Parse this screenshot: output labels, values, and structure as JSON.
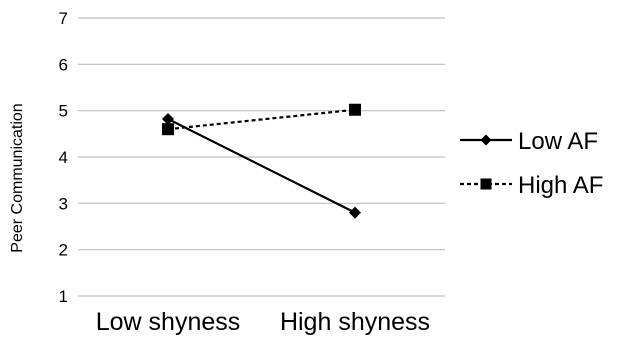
{
  "chart_data": {
    "type": "line",
    "title": "",
    "xlabel": "",
    "ylabel": "Peer Communication",
    "categories": [
      "Low shyness",
      "High shyness"
    ],
    "ylim": [
      1,
      7
    ],
    "yticks": [
      "1",
      "2",
      "3",
      "4",
      "5",
      "6",
      "7"
    ],
    "grid": true,
    "legend_position": "right",
    "series": [
      {
        "name": "Low AF",
        "values": [
          4.82,
          2.8
        ],
        "line_style": "solid",
        "marker": "diamond",
        "color": "#000000"
      },
      {
        "name": "High AF",
        "values": [
          4.6,
          5.02
        ],
        "line_style": "dashed",
        "marker": "square",
        "color": "#000000"
      }
    ]
  }
}
